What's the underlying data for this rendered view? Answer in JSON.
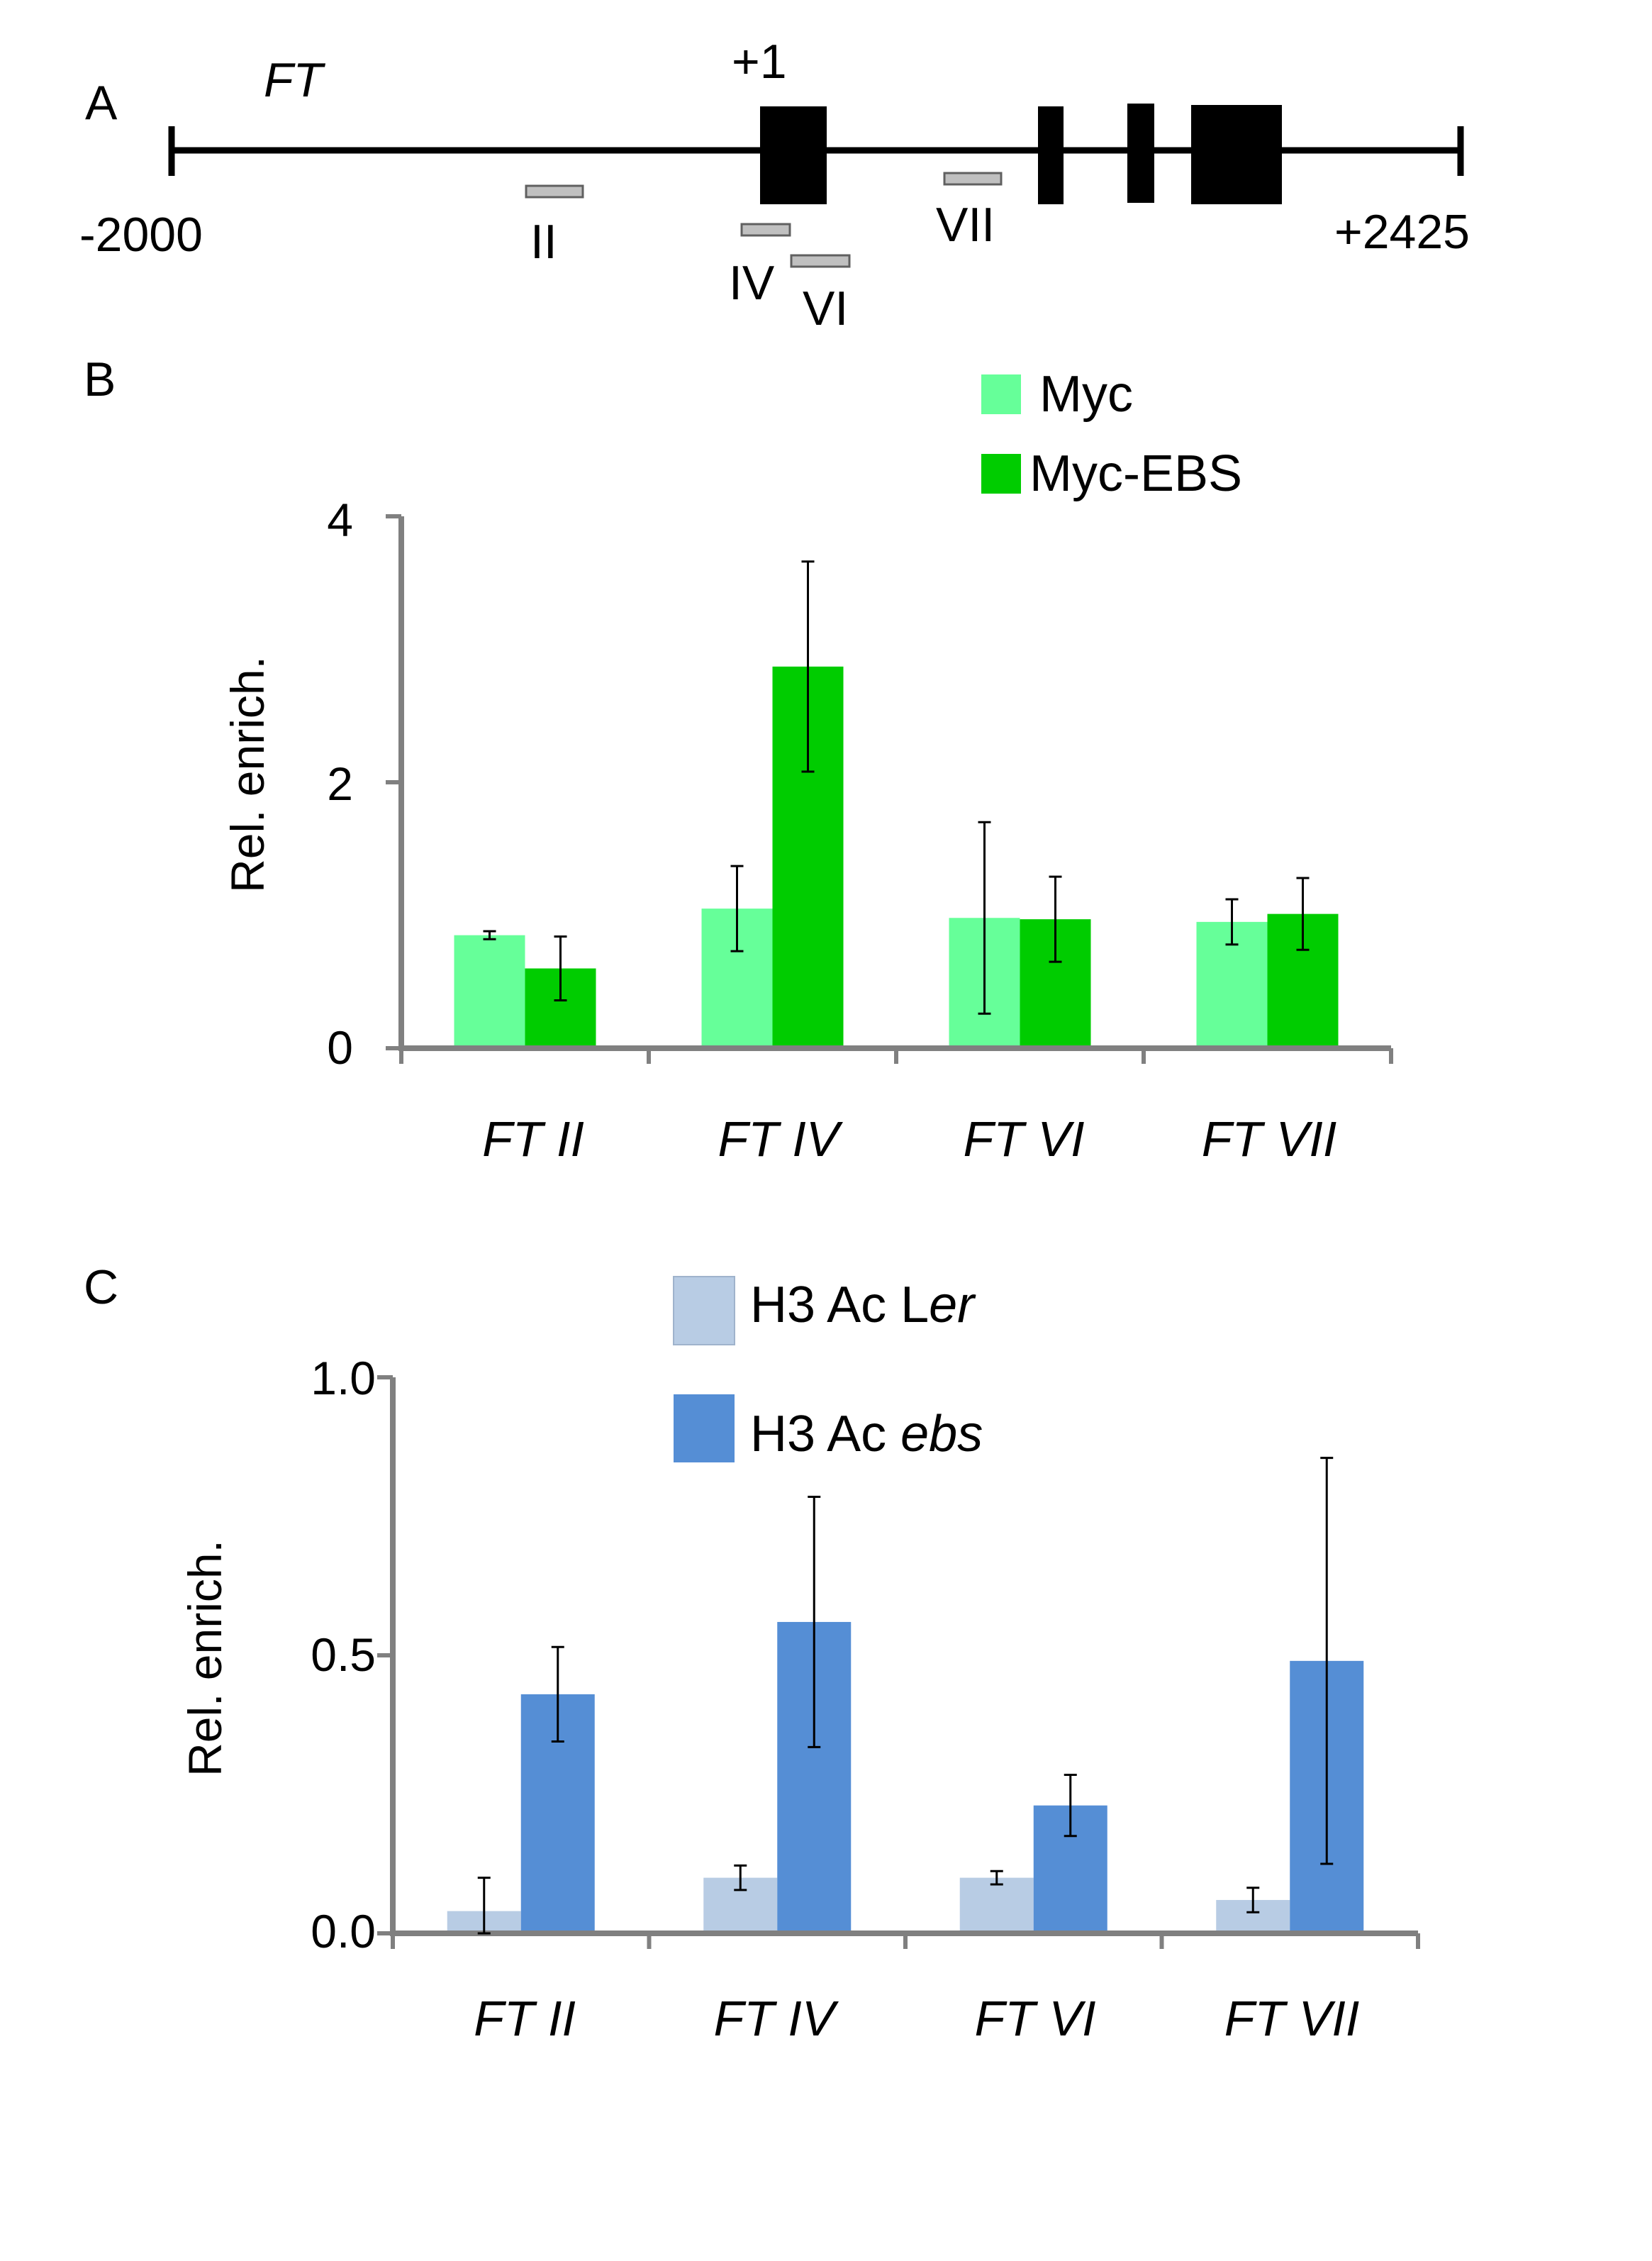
{
  "panels": {
    "a": {
      "letter": "A",
      "gene_name": "FT",
      "tss_label": "+1",
      "start_label": "-2000",
      "end_label": "+2425",
      "amplicons": [
        {
          "label": "II"
        },
        {
          "label": "IV"
        },
        {
          "label": "VI"
        },
        {
          "label": "VII"
        }
      ]
    },
    "b": {
      "letter": "B"
    },
    "c": {
      "letter": "C"
    }
  },
  "colors": {
    "myc": "#66FF99",
    "myc_ebs": "#00CC00",
    "h3_ler": "#B8CCE4",
    "h3_ebs": "#558ED5",
    "axis": "#808080",
    "gene_line": "#000000",
    "amplicon": "#C0C0C0"
  },
  "chart_data": [
    {
      "type": "bar",
      "panel": "B",
      "ylabel": "Rel. enrich.",
      "ylim": [
        0,
        4
      ],
      "yticks": [
        "0",
        "2",
        "4"
      ],
      "categories": [
        "FT II",
        "FT IV",
        "FT VI",
        "FT VII"
      ],
      "series": [
        {
          "name": "Myc",
          "values": [
            0.85,
            1.05,
            0.98,
            0.95
          ],
          "errors": [
            0.03,
            0.32,
            0.72,
            0.17
          ]
        },
        {
          "name": "Myc-EBS",
          "values": [
            0.6,
            2.87,
            0.97,
            1.01
          ],
          "errors": [
            0.24,
            0.79,
            0.32,
            0.27
          ]
        }
      ],
      "legend": "top-right"
    },
    {
      "type": "bar",
      "panel": "C",
      "ylabel": "Rel. enrich.",
      "ylim": [
        0,
        1.0
      ],
      "yticks": [
        "0.0",
        "0.5",
        "1.0"
      ],
      "categories": [
        "FT II",
        "FT IV",
        "FT VI",
        "FT VII"
      ],
      "series": [
        {
          "name": "H3 Ac Ler",
          "label_prefix": "H3 Ac L",
          "label_italic": "er",
          "values": [
            0.04,
            0.1,
            0.1,
            0.06
          ],
          "errors": [
            0.06,
            0.022,
            0.012,
            0.022
          ]
        },
        {
          "name": "H3 Ac ebs",
          "label_prefix": "H3 Ac ",
          "label_italic": "ebs",
          "values": [
            0.43,
            0.56,
            0.23,
            0.49
          ],
          "errors": [
            0.085,
            0.225,
            0.055,
            0.365
          ]
        }
      ],
      "legend": "top-center"
    }
  ]
}
